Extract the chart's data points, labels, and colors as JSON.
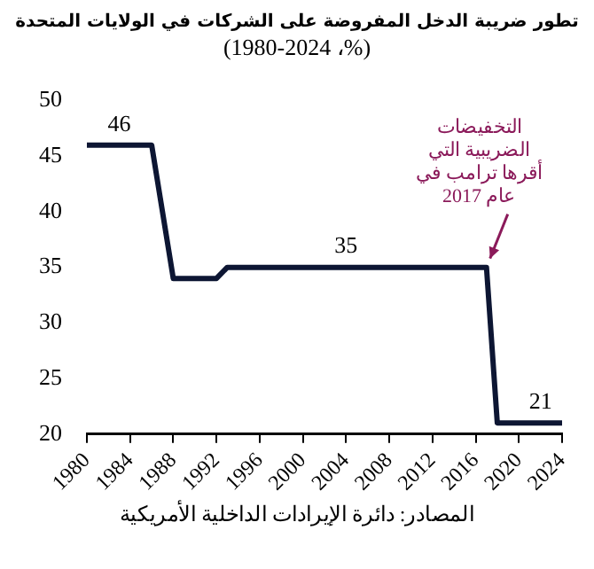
{
  "chart_data": {
    "type": "line",
    "title": "تطور ضريبة الدخل المفروضة على الشركات في الولايات المتحدة",
    "subtitle": "(%، 1980-2024)",
    "x": [
      1980,
      1983,
      1986,
      1987,
      1988,
      1992,
      1993,
      2004,
      2017,
      2018,
      2022,
      2024
    ],
    "series": [
      {
        "color": "#0d1633",
        "values": [
          46,
          46,
          46,
          40,
          34,
          34,
          35,
          35,
          35,
          21,
          21,
          21
        ],
        "value_labels": [
          null,
          "46",
          null,
          null,
          null,
          null,
          null,
          "35",
          null,
          null,
          "21",
          null
        ]
      }
    ],
    "xlim": [
      1980,
      2024
    ],
    "xticks": [
      1980,
      1984,
      1988,
      1992,
      1996,
      2000,
      2004,
      2008,
      2012,
      2016,
      2020,
      2024
    ],
    "ylim": [
      20,
      50
    ],
    "yticks": [
      20,
      25,
      30,
      35,
      40,
      45,
      50
    ],
    "grid": false,
    "legend": false,
    "marker": "none",
    "line_style": "solid",
    "annotations": [
      {
        "text": "التخفيضات الضريبية التي أقرها ترامب في عام 2017",
        "x": 2017,
        "y": 35
      },
      "المصادر: دائرة الإيرادات الداخلية الأمريكية"
    ]
  }
}
